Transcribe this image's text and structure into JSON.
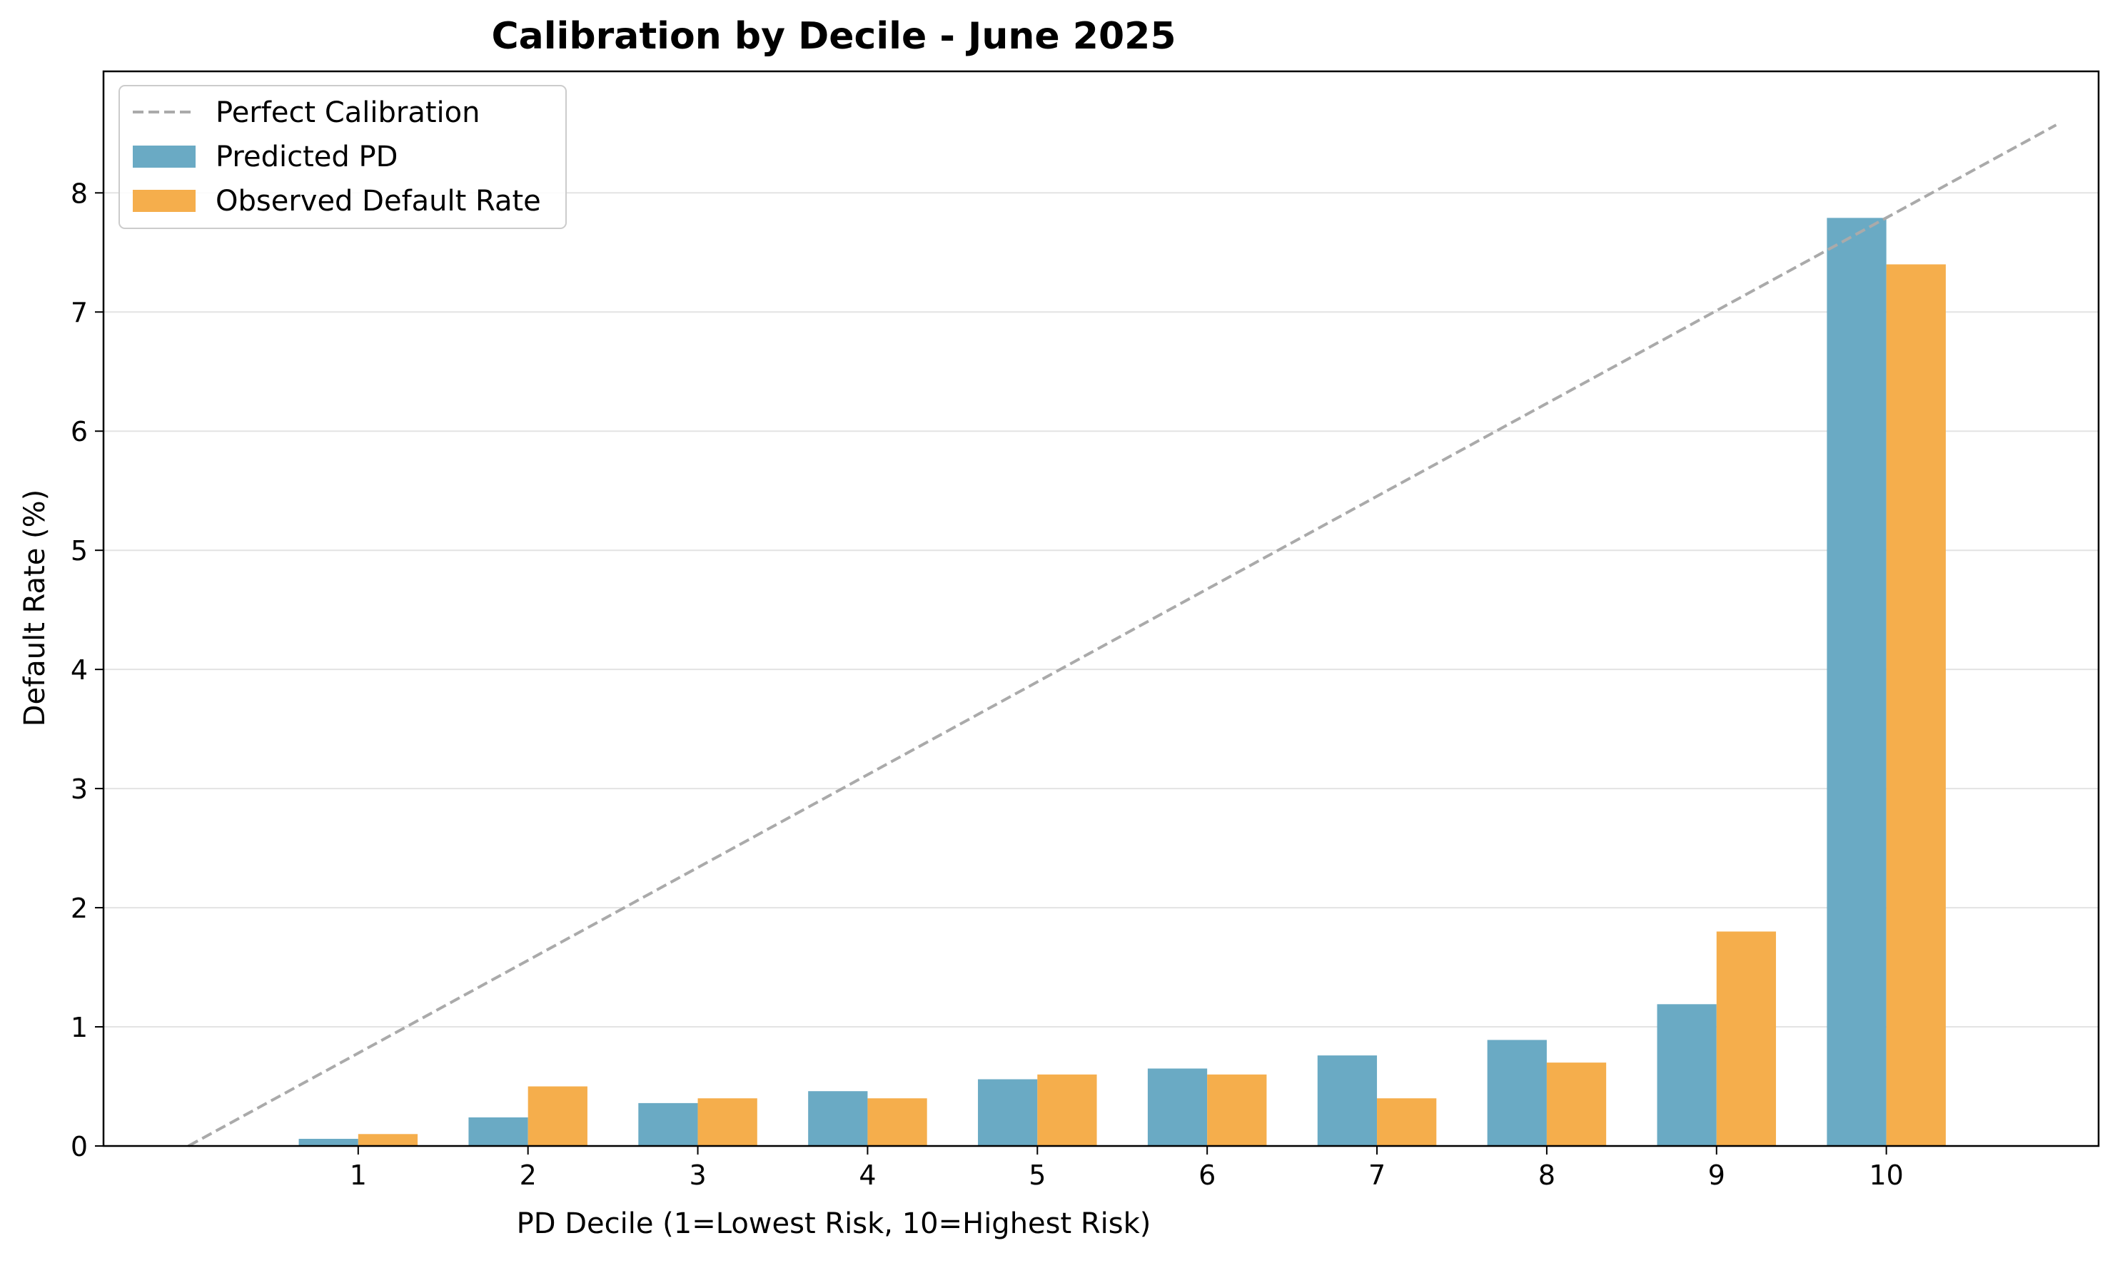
{
  "chart_data": {
    "type": "bar",
    "title": "Calibration by Decile - June 2025",
    "xlabel": "PD Decile (1=Lowest Risk, 10=Highest Risk)",
    "ylabel": "Default Rate (%)",
    "categories": [
      "1",
      "2",
      "3",
      "4",
      "5",
      "6",
      "7",
      "8",
      "9",
      "10"
    ],
    "series": [
      {
        "name": "Predicted PD",
        "color": "#6aaac4",
        "values": [
          0.06,
          0.24,
          0.36,
          0.46,
          0.56,
          0.65,
          0.76,
          0.89,
          1.19,
          7.79
        ]
      },
      {
        "name": "Observed Default Rate",
        "color": "#f5ae4c",
        "values": [
          0.1,
          0.5,
          0.4,
          0.4,
          0.6,
          0.6,
          0.4,
          0.7,
          1.8,
          7.4
        ]
      }
    ],
    "reference_line": {
      "name": "Perfect Calibration",
      "color": "#aaaaaa",
      "style": "dashed",
      "x_start": 0,
      "x_end": 11,
      "y_start": 0,
      "y_end": 8.57
    },
    "ylim": [
      0,
      9.02
    ],
    "yticks": [
      0,
      1,
      2,
      3,
      4,
      5,
      6,
      7,
      8
    ],
    "grid": "horizontal",
    "legend_position": "upper-left"
  }
}
